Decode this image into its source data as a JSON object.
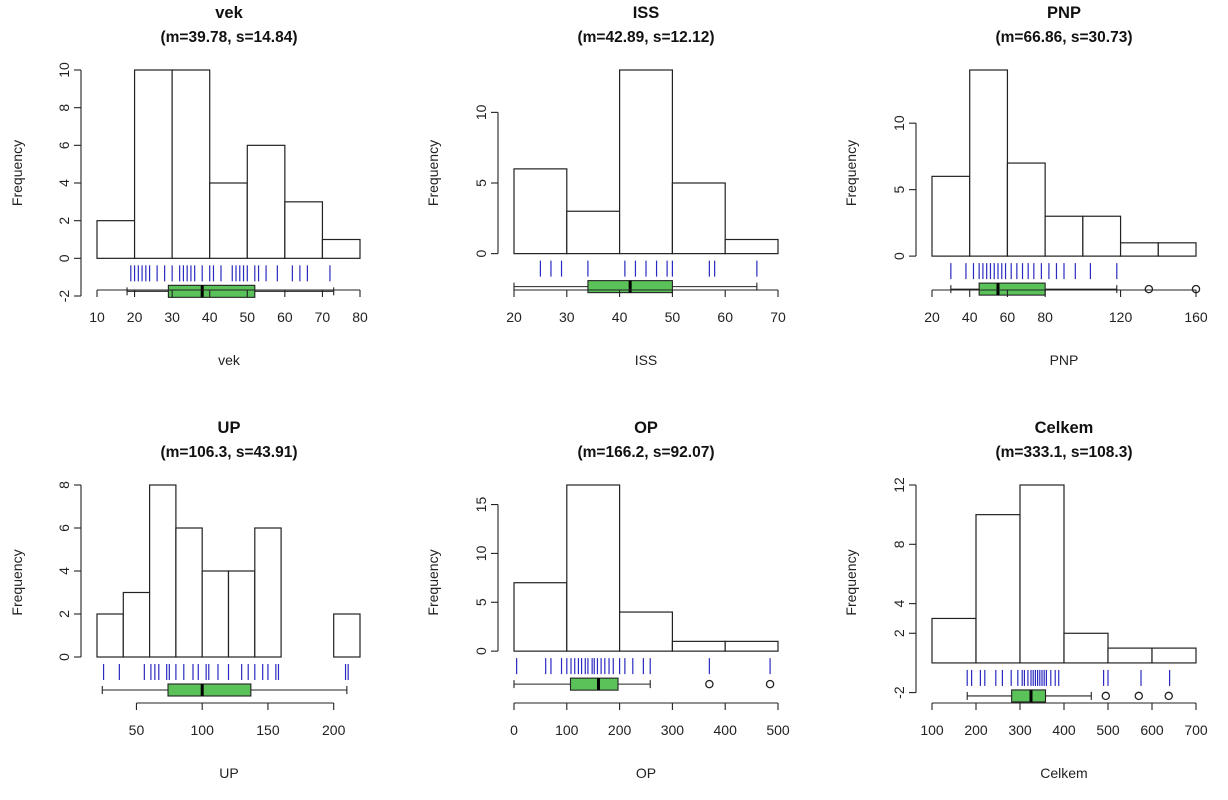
{
  "chart_data": [
    {
      "type": "bar",
      "title": "vek",
      "subtitle": "(m=39.78, s=14.84)",
      "xlabel": "vek",
      "ylabel": "Frequency",
      "xlim": [
        10,
        80
      ],
      "ylim": [
        -2,
        10
      ],
      "xticks": [
        10,
        20,
        30,
        40,
        50,
        60,
        70,
        80
      ],
      "yticks": [
        -2,
        0,
        2,
        4,
        6,
        8,
        10
      ],
      "bins": [
        [
          10,
          20,
          2
        ],
        [
          20,
          30,
          10
        ],
        [
          30,
          40,
          10
        ],
        [
          40,
          50,
          4
        ],
        [
          50,
          60,
          6
        ],
        [
          60,
          70,
          3
        ],
        [
          70,
          80,
          1
        ]
      ],
      "rug": [
        19,
        20,
        21,
        22,
        23,
        24,
        26,
        28,
        30,
        32,
        33,
        34,
        35,
        36,
        38,
        40,
        41,
        43,
        46,
        47,
        48,
        49,
        50,
        52,
        53,
        55,
        58,
        62,
        64,
        66,
        72
      ],
      "boxplot": {
        "whisker_low": 18,
        "q1": 29,
        "median": 38,
        "q3": 52,
        "whisker_high": 73,
        "outliers": []
      }
    },
    {
      "type": "bar",
      "title": "ISS",
      "subtitle": "(m=42.89, s=12.12)",
      "xlabel": "ISS",
      "ylabel": "Frequency",
      "xlim": [
        20,
        70
      ],
      "ylim": [
        -3,
        13
      ],
      "xticks": [
        20,
        30,
        40,
        50,
        60,
        70
      ],
      "yticks": [
        0,
        5,
        10
      ],
      "bins": [
        [
          20,
          30,
          6
        ],
        [
          30,
          40,
          3
        ],
        [
          40,
          50,
          13
        ],
        [
          50,
          60,
          5
        ],
        [
          60,
          70,
          1
        ]
      ],
      "rug": [
        25,
        27,
        29,
        34,
        41,
        43,
        45,
        47,
        49,
        50,
        57,
        58,
        66
      ],
      "boxplot": {
        "whisker_low": 20,
        "q1": 34,
        "median": 42,
        "q3": 50,
        "whisker_high": 66,
        "outliers": []
      }
    },
    {
      "type": "bar",
      "title": "PNP",
      "subtitle": "(m=66.86, s=30.73)",
      "xlabel": "PNP",
      "ylabel": "Frequency",
      "xlim": [
        20,
        160
      ],
      "ylim": [
        -3,
        14
      ],
      "xticks": [
        20,
        40,
        60,
        80,
        120,
        160
      ],
      "yticks": [
        0,
        5,
        10
      ],
      "bins": [
        [
          20,
          40,
          6
        ],
        [
          40,
          60,
          14
        ],
        [
          60,
          80,
          7
        ],
        [
          80,
          100,
          3
        ],
        [
          100,
          120,
          3
        ],
        [
          120,
          140,
          1
        ],
        [
          140,
          160,
          1
        ]
      ],
      "rug": [
        30,
        38,
        42,
        45,
        47,
        49,
        51,
        53,
        55,
        57,
        59,
        62,
        65,
        68,
        71,
        74,
        78,
        82,
        86,
        90,
        96,
        104,
        118
      ],
      "boxplot": {
        "whisker_low": 30,
        "q1": 45,
        "median": 55,
        "q3": 80,
        "whisker_high": 118,
        "outliers": [
          135,
          160
        ]
      }
    },
    {
      "type": "bar",
      "title": "UP",
      "subtitle": "(m=106.3, s=43.91)",
      "xlabel": "UP",
      "ylabel": "Frequency",
      "xlim": [
        20,
        220
      ],
      "ylim": [
        -2,
        8
      ],
      "xticks": [
        50,
        100,
        150,
        200
      ],
      "yticks": [
        0,
        2,
        4,
        6,
        8
      ],
      "bins": [
        [
          20,
          40,
          2
        ],
        [
          40,
          60,
          3
        ],
        [
          60,
          80,
          8
        ],
        [
          80,
          100,
          6
        ],
        [
          100,
          120,
          4
        ],
        [
          120,
          140,
          4
        ],
        [
          140,
          160,
          6
        ],
        [
          160,
          180,
          0
        ],
        [
          180,
          200,
          0
        ],
        [
          200,
          220,
          2
        ]
      ],
      "rug": [
        25,
        37,
        56,
        61,
        64,
        67,
        73,
        75,
        80,
        86,
        93,
        97,
        103,
        105,
        112,
        120,
        130,
        135,
        140,
        146,
        150,
        156,
        158,
        209,
        211
      ],
      "boxplot": {
        "whisker_low": 24,
        "q1": 74,
        "median": 100,
        "q3": 137,
        "whisker_high": 210,
        "outliers": []
      }
    },
    {
      "type": "bar",
      "title": "OP",
      "subtitle": "(m=166.2, s=92.07)",
      "xlabel": "OP",
      "ylabel": "Frequency",
      "xlim": [
        0,
        500
      ],
      "ylim": [
        -5,
        17
      ],
      "xticks": [
        0,
        100,
        200,
        300,
        400,
        500
      ],
      "yticks": [
        0,
        5,
        10,
        15
      ],
      "bins": [
        [
          0,
          100,
          7
        ],
        [
          100,
          200,
          17
        ],
        [
          200,
          300,
          4
        ],
        [
          300,
          400,
          1
        ],
        [
          400,
          500,
          1
        ]
      ],
      "rug": [
        5,
        60,
        70,
        90,
        100,
        108,
        115,
        122,
        128,
        135,
        140,
        148,
        152,
        158,
        165,
        172,
        180,
        188,
        200,
        210,
        225,
        245,
        258,
        370,
        485
      ],
      "boxplot": {
        "whisker_low": 0,
        "q1": 107,
        "median": 160,
        "q3": 197,
        "whisker_high": 258,
        "outliers": [
          370,
          485
        ]
      }
    },
    {
      "type": "bar",
      "title": "Celkem",
      "subtitle": "(m=333.1, s=108.3)",
      "xlabel": "Celkem",
      "ylabel": "Frequency",
      "xlim": [
        100,
        700
      ],
      "ylim": [
        -2.5,
        12
      ],
      "xticks": [
        100,
        200,
        300,
        400,
        500,
        600,
        700
      ],
      "yticks": [
        -2,
        2,
        4,
        8,
        12
      ],
      "bins": [
        [
          100,
          200,
          3
        ],
        [
          200,
          300,
          10
        ],
        [
          300,
          400,
          12
        ],
        [
          400,
          500,
          2
        ],
        [
          500,
          600,
          1
        ],
        [
          600,
          700,
          1
        ]
      ],
      "rug": [
        180,
        190,
        210,
        220,
        245,
        260,
        280,
        295,
        305,
        310,
        318,
        325,
        330,
        335,
        340,
        345,
        350,
        355,
        360,
        370,
        380,
        388,
        490,
        500,
        575,
        640
      ],
      "boxplot": {
        "whisker_low": 180,
        "q1": 281,
        "median": 325,
        "q3": 358,
        "whisker_high": 462,
        "outliers": [
          495,
          570,
          638
        ]
      }
    }
  ]
}
